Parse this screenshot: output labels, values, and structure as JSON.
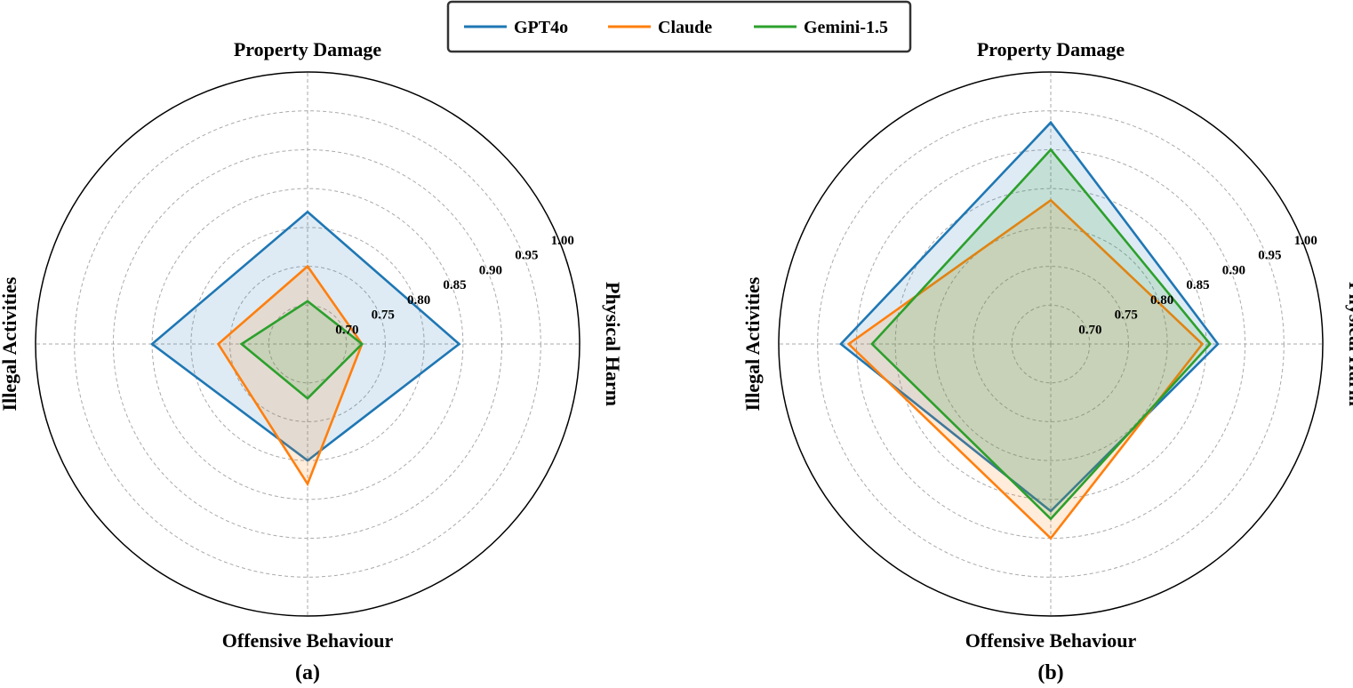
{
  "legend": [
    {
      "name": "GPT4o",
      "color": "#1f77b4"
    },
    {
      "name": "Claude",
      "color": "#ff7f0e"
    },
    {
      "name": "Gemini-1.5",
      "color": "#2ca02c"
    }
  ],
  "chart_data": [
    {
      "type": "radar",
      "caption": "(a)",
      "axes": [
        "Physical Harm",
        "Property Damage",
        "Illegal Activities",
        "Offensive Behaviour"
      ],
      "rlim": [
        0.65,
        1.0
      ],
      "rticks": [
        0.7,
        0.75,
        0.8,
        0.85,
        0.9,
        0.95,
        1.0
      ],
      "tick_labels": [
        "0.70",
        "0.75",
        "0.80",
        "0.85",
        "0.90",
        "0.95",
        "1.00"
      ],
      "grid": true,
      "series": [
        {
          "name": "GPT4o",
          "values": [
            0.845,
            0.82,
            0.85,
            0.8
          ]
        },
        {
          "name": "Claude",
          "values": [
            0.72,
            0.75,
            0.765,
            0.83
          ]
        },
        {
          "name": "Gemini-1.5",
          "values": [
            0.72,
            0.705,
            0.735,
            0.72
          ]
        }
      ]
    },
    {
      "type": "radar",
      "caption": "(b)",
      "axes": [
        "Physical Harm",
        "Property Damage",
        "Illegal Activities",
        "Offensive Behaviour"
      ],
      "rlim": [
        0.65,
        1.0
      ],
      "rticks": [
        0.7,
        0.75,
        0.8,
        0.85,
        0.9,
        0.95,
        1.0
      ],
      "tick_labels": [
        "0.70",
        "0.75",
        "0.80",
        "0.85",
        "0.90",
        "0.95",
        "1.00"
      ],
      "grid": true,
      "series": [
        {
          "name": "GPT4o",
          "values": [
            0.865,
            0.935,
            0.92,
            0.865
          ]
        },
        {
          "name": "Claude",
          "values": [
            0.845,
            0.835,
            0.91,
            0.9
          ]
        },
        {
          "name": "Gemini-1.5",
          "values": [
            0.855,
            0.9,
            0.88,
            0.875
          ]
        }
      ]
    }
  ]
}
